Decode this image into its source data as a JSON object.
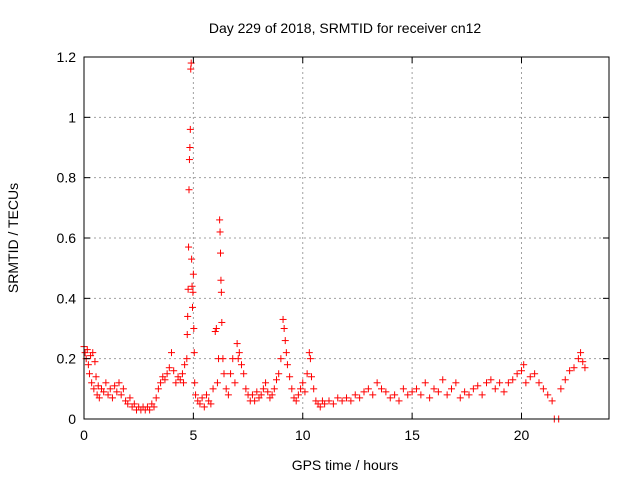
{
  "chart_data": {
    "type": "scatter",
    "title": "Day 229 of 2018, SRMTID for receiver cn12",
    "xlabel": "GPS time / hours",
    "ylabel": "SRMTID / TECUs",
    "xlim": [
      0,
      24
    ],
    "ylim": [
      0,
      1.2
    ],
    "xticks": [
      0,
      5,
      10,
      15,
      20
    ],
    "xtick_labels": [
      "0",
      "5",
      "10",
      "15",
      "20"
    ],
    "yticks": [
      0,
      0.2,
      0.4,
      0.6,
      0.8,
      1.0,
      1.2
    ],
    "ytick_labels": [
      "0",
      "0.2",
      "0.4",
      "0.6",
      "0.8",
      "1",
      "1.2"
    ],
    "grid": true,
    "marker": "plus",
    "color": "#ff0000",
    "series": [
      {
        "name": "SRMTID",
        "points": [
          [
            0.0,
            0.24
          ],
          [
            0.05,
            0.22
          ],
          [
            0.1,
            0.2
          ],
          [
            0.15,
            0.23
          ],
          [
            0.2,
            0.18
          ],
          [
            0.25,
            0.15
          ],
          [
            0.3,
            0.21
          ],
          [
            0.35,
            0.12
          ],
          [
            0.4,
            0.22
          ],
          [
            0.45,
            0.1
          ],
          [
            0.5,
            0.19
          ],
          [
            0.55,
            0.14
          ],
          [
            0.6,
            0.08
          ],
          [
            0.65,
            0.11
          ],
          [
            0.7,
            0.07
          ],
          [
            0.8,
            0.1
          ],
          [
            0.9,
            0.09
          ],
          [
            1.0,
            0.12
          ],
          [
            1.1,
            0.08
          ],
          [
            1.2,
            0.1
          ],
          [
            1.3,
            0.07
          ],
          [
            1.4,
            0.11
          ],
          [
            1.5,
            0.09
          ],
          [
            1.6,
            0.12
          ],
          [
            1.7,
            0.08
          ],
          [
            1.8,
            0.1
          ],
          [
            1.9,
            0.06
          ],
          [
            2.0,
            0.05
          ],
          [
            2.1,
            0.07
          ],
          [
            2.2,
            0.04
          ],
          [
            2.3,
            0.05
          ],
          [
            2.4,
            0.03
          ],
          [
            2.5,
            0.04
          ],
          [
            2.6,
            0.03
          ],
          [
            2.7,
            0.04
          ],
          [
            2.8,
            0.03
          ],
          [
            2.9,
            0.04
          ],
          [
            3.0,
            0.03
          ],
          [
            3.1,
            0.05
          ],
          [
            3.2,
            0.04
          ],
          [
            3.3,
            0.07
          ],
          [
            3.4,
            0.1
          ],
          [
            3.5,
            0.12
          ],
          [
            3.6,
            0.14
          ],
          [
            3.7,
            0.13
          ],
          [
            3.8,
            0.15
          ],
          [
            3.9,
            0.17
          ],
          [
            4.0,
            0.22
          ],
          [
            4.1,
            0.16
          ],
          [
            4.2,
            0.12
          ],
          [
            4.3,
            0.14
          ],
          [
            4.4,
            0.13
          ],
          [
            4.5,
            0.15
          ],
          [
            4.55,
            0.12
          ],
          [
            4.6,
            0.18
          ],
          [
            4.7,
            0.2
          ],
          [
            4.72,
            0.28
          ],
          [
            4.74,
            0.34
          ],
          [
            4.76,
            0.43
          ],
          [
            4.78,
            0.57
          ],
          [
            4.8,
            0.76
          ],
          [
            4.82,
            0.86
          ],
          [
            4.84,
            0.9
          ],
          [
            4.86,
            0.96
          ],
          [
            4.88,
            1.16
          ],
          [
            4.9,
            1.18
          ],
          [
            4.92,
            0.53
          ],
          [
            4.94,
            0.44
          ],
          [
            4.96,
            0.37
          ],
          [
            4.98,
            0.42
          ],
          [
            5.0,
            0.48
          ],
          [
            5.02,
            0.3
          ],
          [
            5.04,
            0.22
          ],
          [
            5.06,
            0.12
          ],
          [
            5.1,
            0.08
          ],
          [
            5.2,
            0.06
          ],
          [
            5.3,
            0.05
          ],
          [
            5.4,
            0.07
          ],
          [
            5.5,
            0.04
          ],
          [
            5.6,
            0.08
          ],
          [
            5.7,
            0.06
          ],
          [
            5.8,
            0.05
          ],
          [
            5.9,
            0.1
          ],
          [
            6.0,
            0.29
          ],
          [
            6.05,
            0.3
          ],
          [
            6.1,
            0.12
          ],
          [
            6.15,
            0.2
          ],
          [
            6.2,
            0.66
          ],
          [
            6.22,
            0.62
          ],
          [
            6.24,
            0.55
          ],
          [
            6.26,
            0.46
          ],
          [
            6.28,
            0.42
          ],
          [
            6.3,
            0.32
          ],
          [
            6.35,
            0.2
          ],
          [
            6.4,
            0.15
          ],
          [
            6.5,
            0.1
          ],
          [
            6.6,
            0.08
          ],
          [
            6.7,
            0.15
          ],
          [
            6.8,
            0.2
          ],
          [
            6.9,
            0.12
          ],
          [
            7.0,
            0.25
          ],
          [
            7.05,
            0.2
          ],
          [
            7.1,
            0.22
          ],
          [
            7.2,
            0.18
          ],
          [
            7.3,
            0.15
          ],
          [
            7.4,
            0.1
          ],
          [
            7.5,
            0.08
          ],
          [
            7.6,
            0.06
          ],
          [
            7.7,
            0.08
          ],
          [
            7.8,
            0.06
          ],
          [
            7.9,
            0.09
          ],
          [
            8.0,
            0.07
          ],
          [
            8.1,
            0.08
          ],
          [
            8.2,
            0.1
          ],
          [
            8.3,
            0.12
          ],
          [
            8.4,
            0.09
          ],
          [
            8.5,
            0.07
          ],
          [
            8.6,
            0.08
          ],
          [
            8.7,
            0.1
          ],
          [
            8.8,
            0.13
          ],
          [
            8.9,
            0.15
          ],
          [
            9.0,
            0.2
          ],
          [
            9.1,
            0.33
          ],
          [
            9.15,
            0.3
          ],
          [
            9.2,
            0.26
          ],
          [
            9.25,
            0.22
          ],
          [
            9.3,
            0.18
          ],
          [
            9.4,
            0.14
          ],
          [
            9.5,
            0.1
          ],
          [
            9.6,
            0.07
          ],
          [
            9.7,
            0.06
          ],
          [
            9.8,
            0.08
          ],
          [
            9.9,
            0.1
          ],
          [
            10.0,
            0.12
          ],
          [
            10.1,
            0.09
          ],
          [
            10.2,
            0.15
          ],
          [
            10.3,
            0.22
          ],
          [
            10.35,
            0.2
          ],
          [
            10.4,
            0.14
          ],
          [
            10.5,
            0.1
          ],
          [
            10.6,
            0.06
          ],
          [
            10.7,
            0.05
          ],
          [
            10.8,
            0.04
          ],
          [
            10.9,
            0.06
          ],
          [
            11.0,
            0.05
          ],
          [
            11.2,
            0.06
          ],
          [
            11.4,
            0.05
          ],
          [
            11.6,
            0.07
          ],
          [
            11.8,
            0.06
          ],
          [
            12.0,
            0.07
          ],
          [
            12.2,
            0.06
          ],
          [
            12.4,
            0.08
          ],
          [
            12.6,
            0.07
          ],
          [
            12.8,
            0.09
          ],
          [
            13.0,
            0.1
          ],
          [
            13.2,
            0.08
          ],
          [
            13.4,
            0.12
          ],
          [
            13.6,
            0.1
          ],
          [
            13.8,
            0.09
          ],
          [
            14.0,
            0.07
          ],
          [
            14.2,
            0.08
          ],
          [
            14.4,
            0.06
          ],
          [
            14.6,
            0.1
          ],
          [
            14.8,
            0.08
          ],
          [
            15.0,
            0.09
          ],
          [
            15.2,
            0.1
          ],
          [
            15.4,
            0.08
          ],
          [
            15.6,
            0.12
          ],
          [
            15.8,
            0.07
          ],
          [
            16.0,
            0.1
          ],
          [
            16.2,
            0.09
          ],
          [
            16.4,
            0.13
          ],
          [
            16.6,
            0.08
          ],
          [
            16.8,
            0.1
          ],
          [
            17.0,
            0.12
          ],
          [
            17.2,
            0.07
          ],
          [
            17.4,
            0.09
          ],
          [
            17.6,
            0.08
          ],
          [
            17.8,
            0.1
          ],
          [
            18.0,
            0.11
          ],
          [
            18.2,
            0.08
          ],
          [
            18.4,
            0.12
          ],
          [
            18.6,
            0.13
          ],
          [
            18.8,
            0.1
          ],
          [
            19.0,
            0.12
          ],
          [
            19.2,
            0.09
          ],
          [
            19.4,
            0.12
          ],
          [
            19.6,
            0.13
          ],
          [
            19.8,
            0.15
          ],
          [
            20.0,
            0.16
          ],
          [
            20.1,
            0.18
          ],
          [
            20.2,
            0.12
          ],
          [
            20.4,
            0.14
          ],
          [
            20.6,
            0.15
          ],
          [
            20.8,
            0.12
          ],
          [
            21.0,
            0.1
          ],
          [
            21.2,
            0.08
          ],
          [
            21.4,
            0.06
          ],
          [
            21.5,
            0.0
          ],
          [
            21.7,
            0.0
          ],
          [
            21.8,
            0.1
          ],
          [
            22.0,
            0.13
          ],
          [
            22.2,
            0.16
          ],
          [
            22.4,
            0.17
          ],
          [
            22.6,
            0.2
          ],
          [
            22.7,
            0.22
          ],
          [
            22.8,
            0.19
          ],
          [
            22.9,
            0.17
          ]
        ]
      }
    ]
  }
}
